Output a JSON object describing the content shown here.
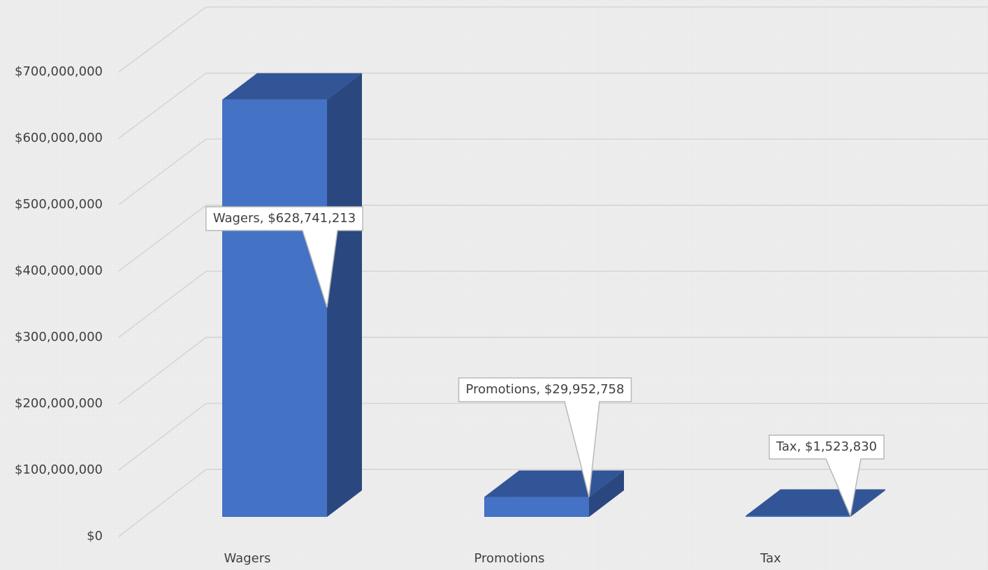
{
  "chart_data": {
    "type": "bar3d",
    "categories": [
      "Wagers",
      "Promotions",
      "Tax"
    ],
    "values": [
      628741213,
      29952758,
      1523830
    ],
    "value_labels": [
      "Wagers, $628,741,213",
      "Promotions, $29,952,758",
      "Tax, $1,523,830"
    ],
    "colors": {
      "front": "#4472c4",
      "top": "#325597",
      "side": "#2a477f"
    },
    "ylim": [
      0,
      700000000
    ],
    "yticks": [
      {
        "value": 0,
        "label": "$0"
      },
      {
        "value": 100000000,
        "label": "$100,000,000"
      },
      {
        "value": 200000000,
        "label": "$200,000,000"
      },
      {
        "value": 300000000,
        "label": "$300,000,000"
      },
      {
        "value": 400000000,
        "label": "$400,000,000"
      },
      {
        "value": 500000000,
        "label": "$500,000,000"
      },
      {
        "value": 600000000,
        "label": "$600,000,000"
      },
      {
        "value": 700000000,
        "label": "$700,000,000"
      }
    ],
    "grid": true
  }
}
